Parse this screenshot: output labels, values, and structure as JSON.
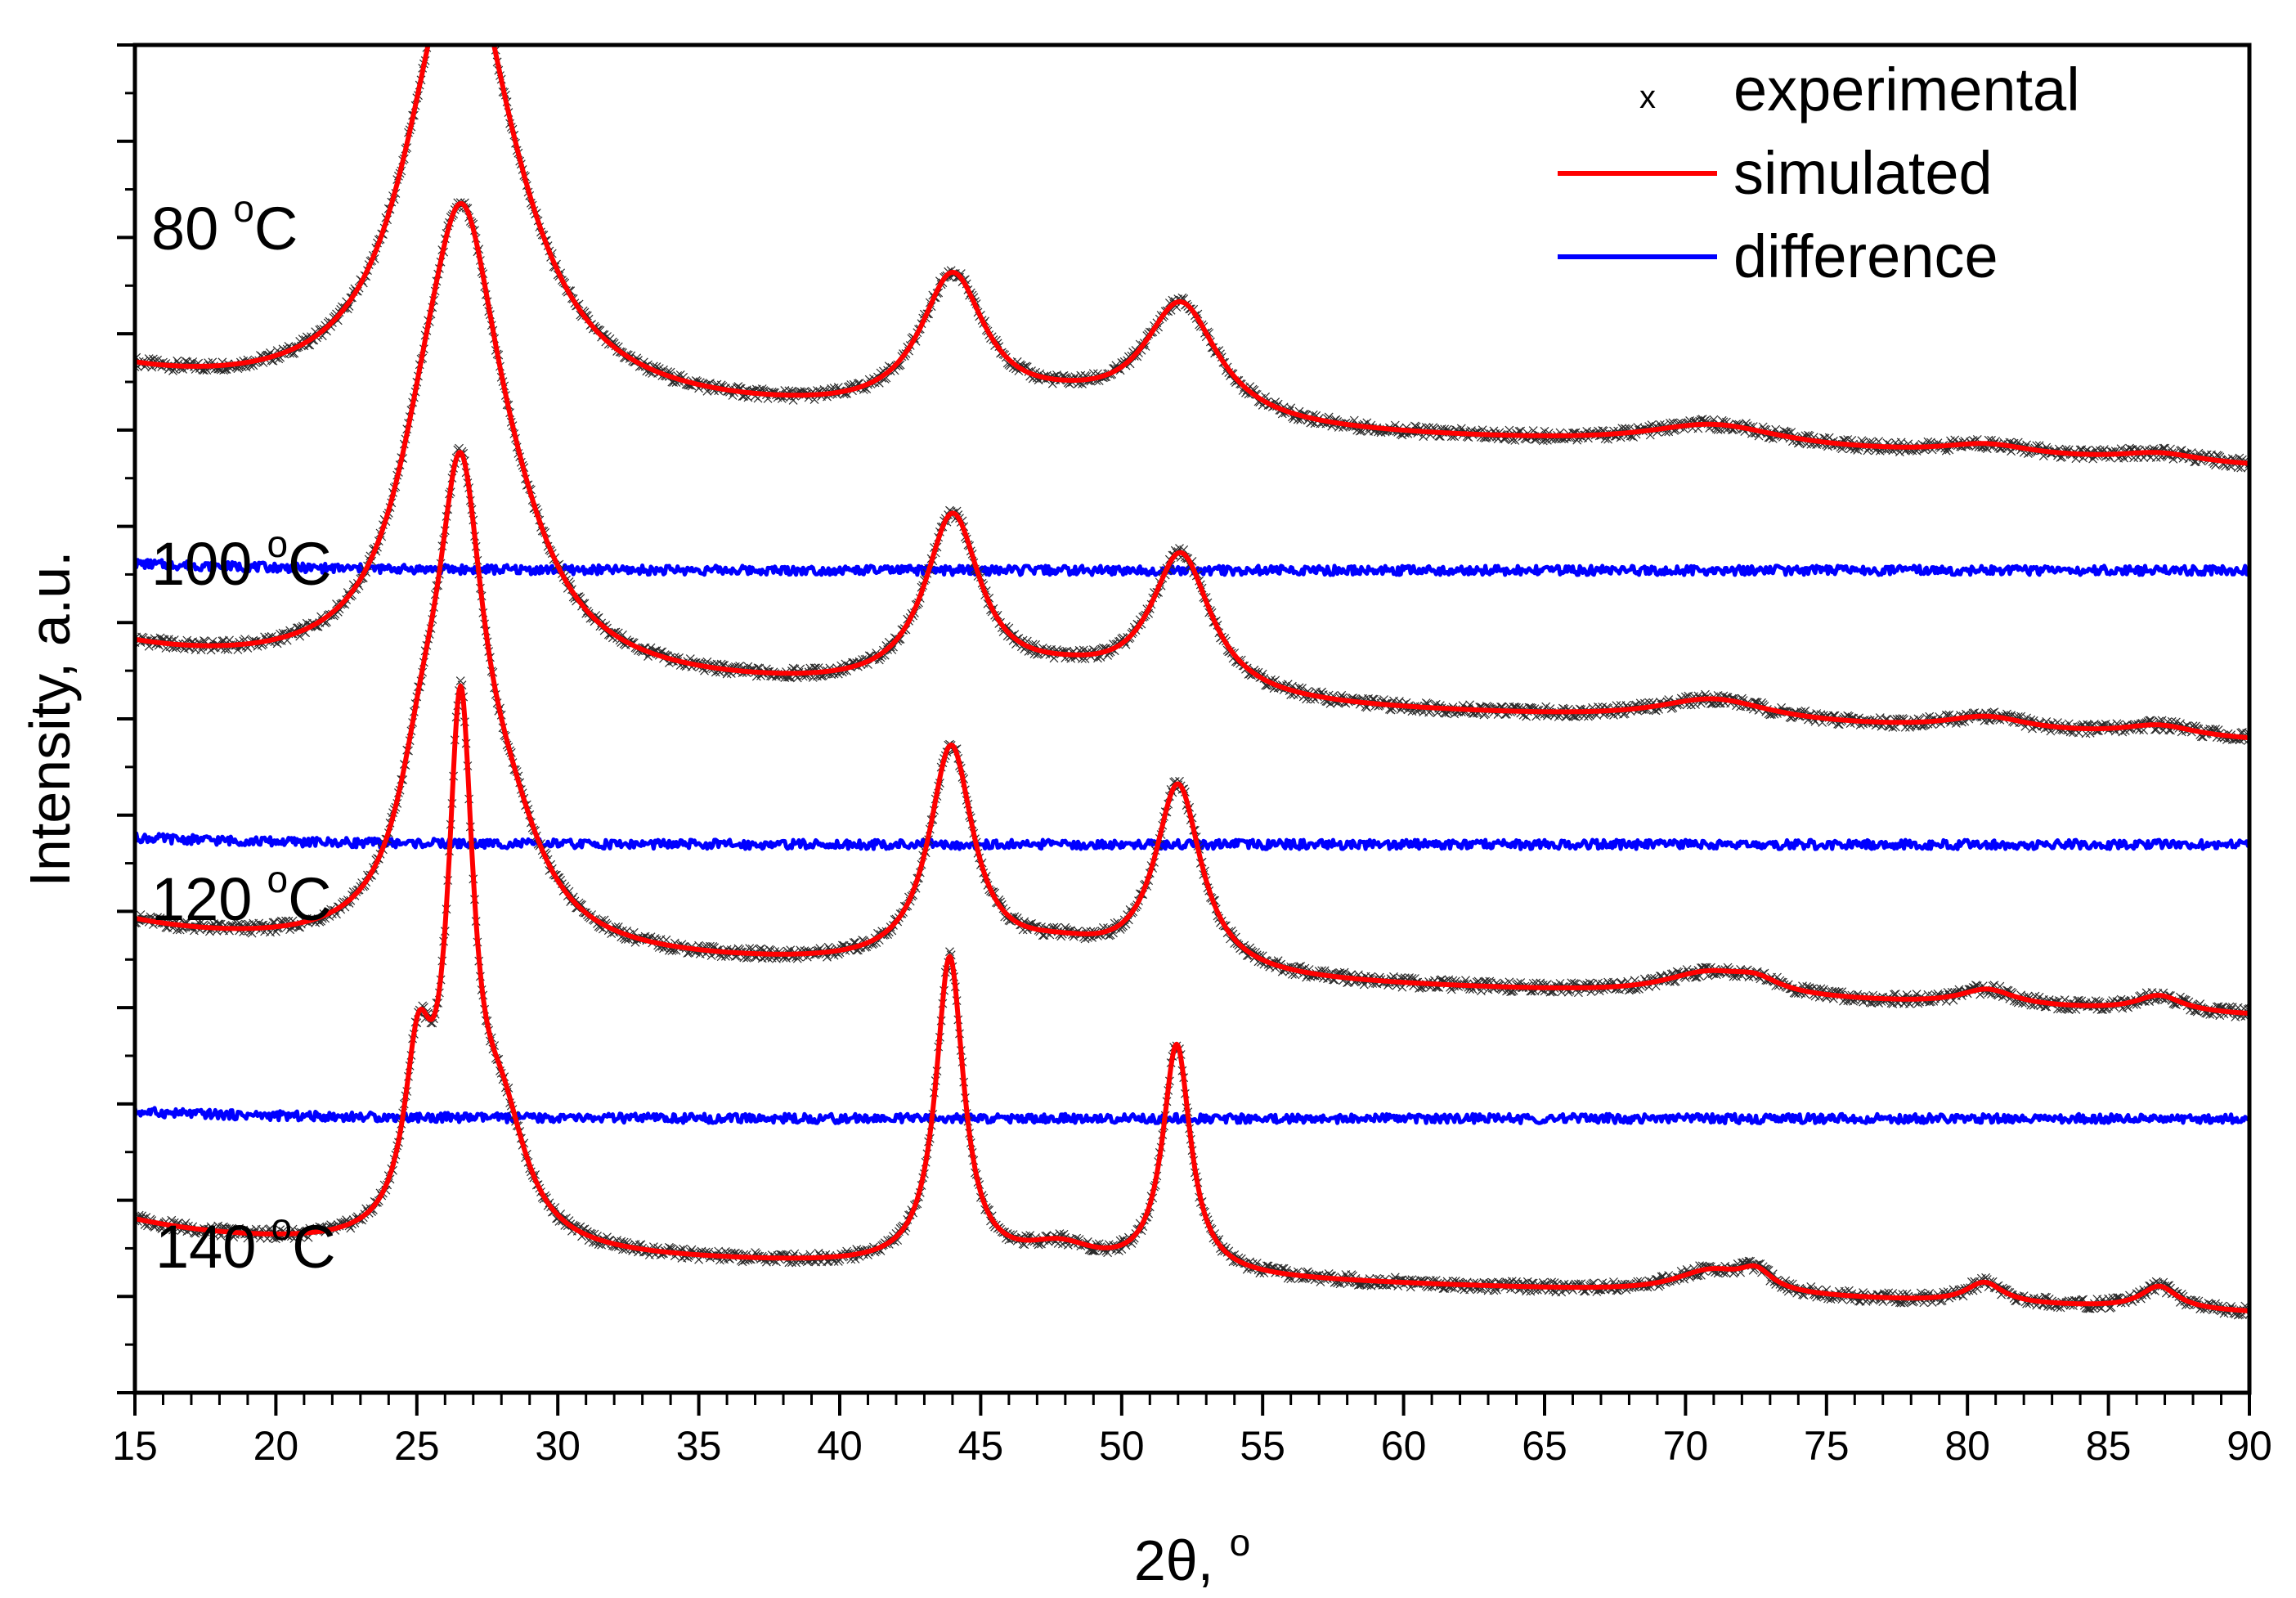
{
  "chart_data": {
    "type": "line",
    "title": "",
    "xlabel": "2θ, °",
    "xlabel_parts": {
      "main": "2θ, ",
      "degree": "o"
    },
    "ylabel": "Intensity, a.u.",
    "xlim": [
      15,
      90
    ],
    "x_ticks": [
      15,
      20,
      25,
      30,
      35,
      40,
      45,
      50,
      55,
      60,
      65,
      70,
      75,
      80,
      85,
      90
    ],
    "y_ticks_numbered": false,
    "colors": {
      "experimental": "#000000",
      "simulated": "#ff0000",
      "difference": "#0000ff"
    },
    "legend": {
      "position": "top-right",
      "entries": [
        {
          "label": "experimental",
          "style": "marker-x",
          "marker": "x"
        },
        {
          "label": "simulated",
          "style": "line"
        },
        {
          "label": "difference",
          "style": "line"
        }
      ]
    },
    "samples": [
      {
        "label": "80 °C",
        "label_parts": {
          "number": "80",
          "degree": "o",
          "unit": "C"
        },
        "base": 4.05,
        "slope": 0.004,
        "bg_amp": 0.1,
        "diff_offset": -0.45,
        "peaks": [
          {
            "center": 26.6,
            "height": 1.72,
            "width": 1.9
          },
          {
            "center": 25.2,
            "height": 0.25,
            "width": 1.8
          },
          {
            "center": 28.3,
            "height": 0.25,
            "width": 2.4
          },
          {
            "center": 44.0,
            "height": 0.6,
            "width": 1.4
          },
          {
            "center": 48.0,
            "height": 0.06,
            "width": 3.0
          },
          {
            "center": 52.1,
            "height": 0.52,
            "width": 1.6
          },
          {
            "center": 71.0,
            "height": 0.1,
            "width": 3.0
          },
          {
            "center": 80.7,
            "height": 0.05,
            "width": 2.0
          },
          {
            "center": 86.8,
            "height": 0.04,
            "width": 1.8
          }
        ]
      },
      {
        "label": "100 °C",
        "label_parts": {
          "number": "100",
          "degree": "o",
          "unit": "C"
        },
        "base": 2.85,
        "slope": 0.004,
        "bg_amp": 0.1,
        "diff_offset": -0.45,
        "peaks": [
          {
            "center": 26.6,
            "height": 1.74,
            "width": 1.6
          },
          {
            "center": 25.2,
            "height": 0.35,
            "width": 1.4
          },
          {
            "center": 28.3,
            "height": 0.3,
            "width": 2.0
          },
          {
            "center": 44.0,
            "height": 0.75,
            "width": 1.2
          },
          {
            "center": 48.0,
            "height": 0.08,
            "width": 3.0
          },
          {
            "center": 52.1,
            "height": 0.62,
            "width": 1.3
          },
          {
            "center": 71.0,
            "height": 0.1,
            "width": 2.5
          },
          {
            "center": 80.7,
            "height": 0.06,
            "width": 1.8
          },
          {
            "center": 86.8,
            "height": 0.05,
            "width": 1.6
          }
        ]
      },
      {
        "label": "120 °C",
        "label_parts": {
          "number": "120",
          "degree": "o",
          "unit": "C"
        },
        "base": 1.65,
        "slope": 0.004,
        "bg_amp": 0.1,
        "diff_offset": -0.45,
        "peaks": [
          {
            "center": 26.55,
            "height": 1.8,
            "width": 1.0
          },
          {
            "center": 25.2,
            "height": 0.52,
            "width": 1.1
          },
          {
            "center": 28.2,
            "height": 0.4,
            "width": 1.6
          },
          {
            "center": 43.95,
            "height": 0.95,
            "width": 0.95
          },
          {
            "center": 47.8,
            "height": 0.09,
            "width": 2.5
          },
          {
            "center": 52.0,
            "height": 0.82,
            "width": 1.0
          },
          {
            "center": 70.8,
            "height": 0.1,
            "width": 2.0
          },
          {
            "center": 72.5,
            "height": 0.05,
            "width": 1.0
          },
          {
            "center": 80.7,
            "height": 0.07,
            "width": 1.2
          },
          {
            "center": 86.8,
            "height": 0.07,
            "width": 1.0
          }
        ]
      },
      {
        "label": "140 °C",
        "label_parts": {
          "number": "140",
          "degree": "o",
          "unit": "C"
        },
        "base": 0.35,
        "slope": 0.004,
        "bg_amp": 0.1,
        "diff_offset": -0.45,
        "peaks": [
          {
            "center": 26.55,
            "height": 2.2,
            "width": 0.55
          },
          {
            "center": 25.05,
            "height": 0.72,
            "width": 0.6
          },
          {
            "center": 28.0,
            "height": 0.5,
            "width": 1.1
          },
          {
            "center": 43.9,
            "height": 1.35,
            "width": 0.6
          },
          {
            "center": 47.8,
            "height": 0.1,
            "width": 1.6
          },
          {
            "center": 51.95,
            "height": 1.0,
            "width": 0.6
          },
          {
            "center": 70.9,
            "height": 0.1,
            "width": 1.6
          },
          {
            "center": 72.5,
            "height": 0.08,
            "width": 0.7
          },
          {
            "center": 80.6,
            "height": 0.09,
            "width": 0.8
          },
          {
            "center": 86.8,
            "height": 0.1,
            "width": 0.8
          }
        ]
      }
    ]
  }
}
